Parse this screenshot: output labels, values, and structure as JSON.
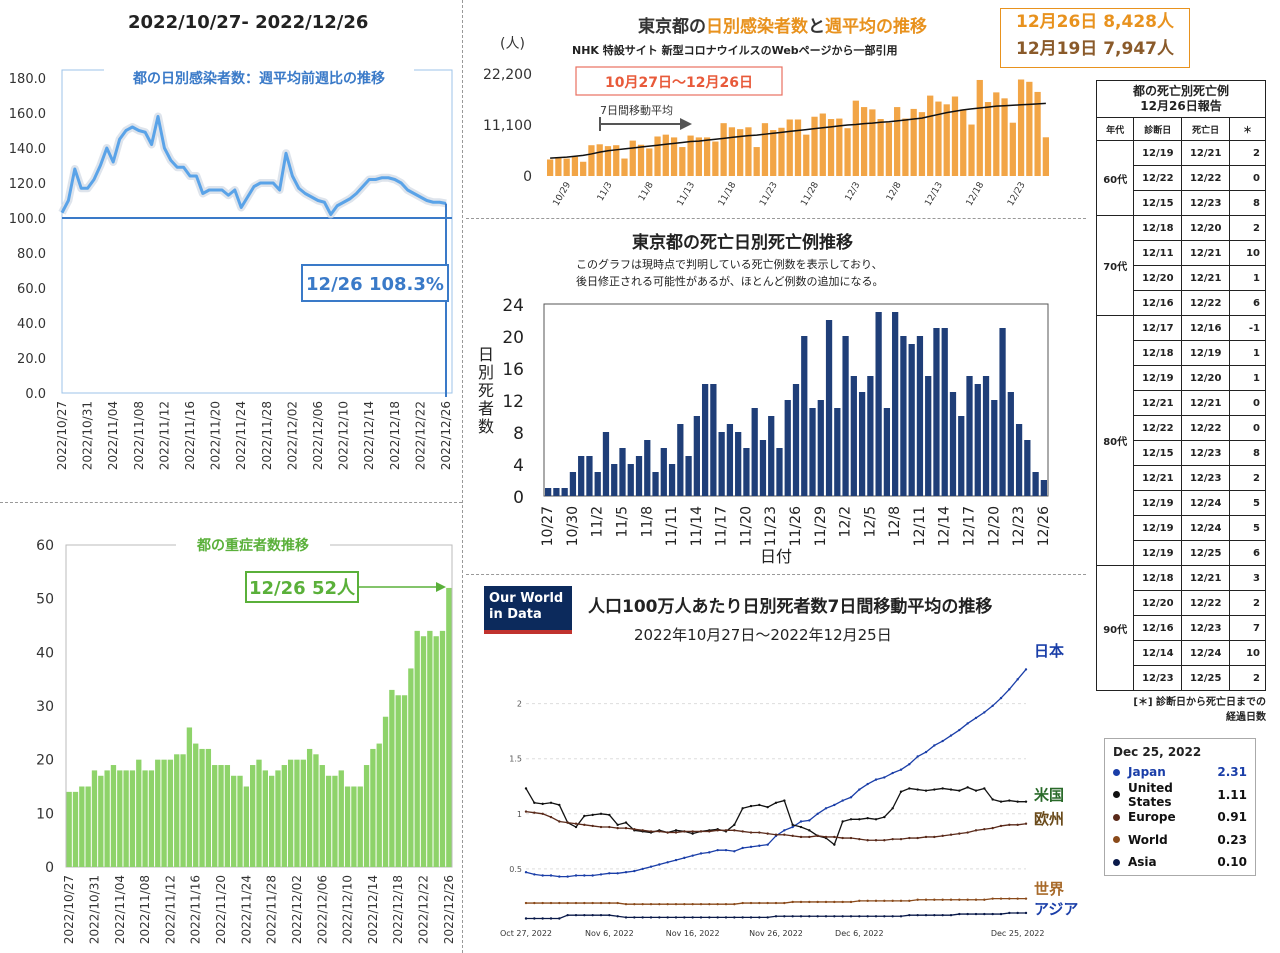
{
  "panel1": {
    "header": "2022/10/27- 2022/12/26",
    "title": "都の日別感染者数：週平均前週比の推移",
    "callout": "12/26 108.3%",
    "y_ticks": [
      "180.0",
      "160.0",
      "140.0",
      "120.0",
      "100.0",
      "80.0",
      "60.0",
      "40.0",
      "20.0",
      "0.0"
    ],
    "x_ticks": [
      "2022/10/27",
      "2022/10/31",
      "2022/11/04",
      "2022/11/08",
      "2022/11/12",
      "2022/11/16",
      "2022/11/20",
      "2022/11/24",
      "2022/11/28",
      "2022/12/02",
      "2022/12/06",
      "2022/12/10",
      "2022/12/14",
      "2022/12/18",
      "2022/12/22",
      "2022/12/26"
    ]
  },
  "panel2": {
    "title_part1": "東京都の",
    "title_part2": "日別感染者数",
    "title_part3": "と",
    "title_part4": "週平均",
    "title_part5": "の推移",
    "subtitle": "NHK 特設サイト 新型コロナウイルスのWebページから一部引用",
    "unit": "(人)",
    "range_label": "10月27日〜12月26日",
    "avg_label": "7日間移動平均",
    "box_line1": "12月26日 8,428人",
    "box_line2": "12月19日 7,947人",
    "y_ticks": [
      "22,200",
      "11,100",
      "0"
    ],
    "x_ticks": [
      "10/29",
      "11/3",
      "11/8",
      "11/13",
      "11/18",
      "11/23",
      "11/28",
      "12/3",
      "12/8",
      "12/13",
      "12/18",
      "12/23"
    ]
  },
  "panel3": {
    "title": "東京都の死亡日別死亡例推移",
    "note1": "このグラフは現時点で判明している死亡例数を表示しており、",
    "note2": "後日修正される可能性があるが、ほとんど例数の追加になる。",
    "ylabel": "日別死者数",
    "xlabel": "日付",
    "y_ticks": [
      "24",
      "20",
      "16",
      "12",
      "8",
      "4",
      "0"
    ],
    "x_ticks": [
      "10/27",
      "10/30",
      "11/2",
      "11/5",
      "11/8",
      "11/11",
      "11/14",
      "11/17",
      "11/20",
      "11/23",
      "11/26",
      "11/29",
      "12/2",
      "12/5",
      "12/8",
      "12/11",
      "12/14",
      "12/17",
      "12/20",
      "12/23",
      "12/26"
    ]
  },
  "panel4": {
    "title": "都の重症者数推移",
    "callout": "12/26 52人",
    "y_ticks": [
      "60",
      "50",
      "40",
      "30",
      "20",
      "10",
      "0"
    ],
    "x_ticks": [
      "2022/10/27",
      "2022/10/31",
      "2022/11/04",
      "2022/11/08",
      "2022/11/12",
      "2022/11/16",
      "2022/11/20",
      "2022/11/24",
      "2022/11/28",
      "2022/12/02",
      "2022/12/06",
      "2022/12/10",
      "2022/12/14",
      "2022/12/18",
      "2022/12/22",
      "2022/12/26"
    ]
  },
  "panel5": {
    "logo_line1": "Our World",
    "logo_line2": "in Data",
    "title": "人口100万人あたり日別死者数7日間移動平均の推移",
    "subtitle": "2022年10月27日〜2022年12月25日",
    "y_ticks": [
      "2",
      "1.5",
      "1",
      "0.5"
    ],
    "x_ticks": [
      "Oct 27, 2022",
      "Nov 6, 2022",
      "Nov 16, 2022",
      "Nov 26, 2022",
      "Dec 6, 2022",
      "Dec 25, 2022"
    ],
    "label_japan": "日本",
    "label_us": "米国",
    "label_europe": "欧州",
    "label_world": "世界",
    "label_asia": "アジア",
    "legend": {
      "date": "Dec 25, 2022",
      "rows": [
        {
          "name": "Japan",
          "value": "2.31",
          "color": "#1a3ea8"
        },
        {
          "name": "United States",
          "value": "1.11",
          "color": "#111111"
        },
        {
          "name": "Europe",
          "value": "0.91",
          "color": "#5a2a1a"
        },
        {
          "name": "World",
          "value": "0.23",
          "color": "#8a4a1a"
        },
        {
          "name": "Asia",
          "value": "0.10",
          "color": "#0a1a4a"
        }
      ]
    }
  },
  "table": {
    "title_line1": "都の死亡別死亡例",
    "title_line2": "12月26日報告",
    "headers": [
      "年代",
      "診断日",
      "死亡日",
      "＊"
    ],
    "groups": [
      {
        "age": "60代",
        "rows": [
          [
            "12/19",
            "12/21",
            "2"
          ],
          [
            "12/22",
            "12/22",
            "0"
          ],
          [
            "12/15",
            "12/23",
            "8"
          ]
        ]
      },
      {
        "age": "70代",
        "rows": [
          [
            "12/18",
            "12/20",
            "2"
          ],
          [
            "12/11",
            "12/21",
            "10"
          ],
          [
            "12/20",
            "12/21",
            "1"
          ],
          [
            "12/16",
            "12/22",
            "6"
          ]
        ]
      },
      {
        "age": "80代",
        "rows": [
          [
            "12/17",
            "12/16",
            "-1"
          ],
          [
            "12/18",
            "12/19",
            "1"
          ],
          [
            "12/19",
            "12/20",
            "1"
          ],
          [
            "12/21",
            "12/21",
            "0"
          ],
          [
            "12/22",
            "12/22",
            "0"
          ],
          [
            "12/15",
            "12/23",
            "8"
          ],
          [
            "12/21",
            "12/23",
            "2"
          ],
          [
            "12/19",
            "12/24",
            "5"
          ],
          [
            "12/19",
            "12/24",
            "5"
          ],
          [
            "12/19",
            "12/25",
            "6"
          ]
        ]
      },
      {
        "age": "90代",
        "rows": [
          [
            "12/18",
            "12/21",
            "3"
          ],
          [
            "12/20",
            "12/22",
            "2"
          ],
          [
            "12/16",
            "12/23",
            "7"
          ],
          [
            "12/14",
            "12/24",
            "10"
          ],
          [
            "12/23",
            "12/25",
            "2"
          ]
        ]
      }
    ],
    "footnote_line1": "[＊] 診断日から死亡日までの",
    "footnote_line2": "経過日数"
  },
  "chart_data": [
    {
      "type": "line",
      "title": "都の日別感染者数：週平均前週比の推移",
      "x_start": "2022/10/27",
      "x_end": "2022/12/26",
      "ylim": [
        0,
        180
      ],
      "reference_line": 100,
      "values": [
        103,
        110,
        128,
        117,
        117,
        122,
        130,
        140,
        132,
        145,
        150,
        152,
        150,
        149,
        142,
        158,
        140,
        133,
        129,
        129,
        124,
        124,
        114,
        116,
        116,
        116,
        113,
        116,
        106,
        112,
        118,
        120,
        120,
        120,
        116,
        137,
        124,
        117,
        114,
        112,
        110,
        109,
        102,
        107,
        109,
        111,
        114,
        118,
        122,
        122,
        123,
        123,
        122,
        120,
        116,
        114,
        112,
        110,
        109,
        109,
        108.3
      ]
    },
    {
      "type": "bar",
      "title": "東京都の日別感染者数と週平均の推移",
      "x_start": "10/27",
      "x_end": "12/26",
      "ylim": [
        0,
        22200
      ],
      "values": [
        3600,
        4100,
        3800,
        4200,
        3100,
        6700,
        6900,
        6500,
        6700,
        3800,
        7700,
        6800,
        6000,
        8600,
        9000,
        8400,
        6300,
        8800,
        8400,
        8400,
        7500,
        11500,
        10600,
        10200,
        10600,
        6300,
        11500,
        10000,
        10500,
        12300,
        12300,
        9000,
        12900,
        13600,
        12400,
        12500,
        10400,
        16400,
        15000,
        14500,
        12400,
        11600,
        15000,
        12500,
        14600,
        13900,
        17500,
        16200,
        15600,
        17300,
        14500,
        11200,
        20900,
        16100,
        18200,
        16900,
        11600,
        21000,
        20500,
        18300,
        8428
      ],
      "moving_average": [
        3900,
        4000,
        4100,
        4300,
        4500,
        4800,
        5200,
        5500,
        5700,
        5900,
        6100,
        6300,
        6500,
        6700,
        6900,
        7100,
        7300,
        7500,
        7600,
        7800,
        8000,
        8200,
        8400,
        8600,
        8800,
        8900,
        9100,
        9300,
        9500,
        9700,
        9900,
        10100,
        10300,
        10500,
        10700,
        10900,
        11100,
        11200,
        11400,
        11500,
        11700,
        11800,
        12000,
        12200,
        12400,
        12600,
        13000,
        13400,
        13800,
        14100,
        14400,
        14600,
        14800,
        15000,
        15200,
        15300,
        15400,
        15500,
        15600,
        15700,
        15800
      ]
    },
    {
      "type": "bar",
      "title": "東京都の死亡日別死亡例推移",
      "ylabel": "日別死者数",
      "xlabel": "日付",
      "x_start": "10/27",
      "x_end": "12/26",
      "ylim": [
        0,
        24
      ],
      "values": [
        1,
        1,
        1,
        3,
        5,
        5,
        3,
        8,
        4,
        6,
        4,
        5,
        7,
        3,
        6,
        4,
        9,
        5,
        10,
        14,
        14,
        8,
        9,
        8,
        6,
        11,
        7,
        10,
        6,
        12,
        14,
        20,
        11,
        12,
        22,
        11,
        20,
        15,
        13,
        15,
        23,
        11,
        23,
        20,
        19,
        20,
        15,
        21,
        21,
        13,
        10,
        15,
        14,
        15,
        12,
        21,
        13,
        9,
        7,
        3,
        2
      ]
    },
    {
      "type": "bar",
      "title": "都の重症者数推移",
      "x_start": "2022/10/27",
      "x_end": "2022/12/26",
      "ylim": [
        0,
        60
      ],
      "values": [
        14,
        14,
        15,
        15,
        18,
        17,
        18,
        19,
        18,
        18,
        18,
        20,
        18,
        18,
        20,
        20,
        20,
        21,
        21,
        26,
        23,
        22,
        22,
        19,
        19,
        19,
        17,
        17,
        15,
        19,
        20,
        18,
        17,
        18,
        19,
        20,
        20,
        20,
        22,
        21,
        19,
        17,
        17,
        18,
        15,
        15,
        15,
        19,
        22,
        23,
        28,
        33,
        32,
        32,
        37,
        44,
        43,
        44,
        43,
        44,
        52
      ]
    },
    {
      "type": "line",
      "title": "人口100万人あたり日別死者数7日間移動平均の推移",
      "x_start": "Oct 27, 2022",
      "x_end": "Dec 25, 2022",
      "series": [
        {
          "name": "Japan",
          "color": "#1a3ea8",
          "values": [
            0.47,
            0.45,
            0.44,
            0.44,
            0.43,
            0.43,
            0.44,
            0.44,
            0.44,
            0.45,
            0.46,
            0.46,
            0.47,
            0.48,
            0.5,
            0.52,
            0.54,
            0.56,
            0.58,
            0.6,
            0.62,
            0.64,
            0.65,
            0.67,
            0.67,
            0.66,
            0.69,
            0.7,
            0.71,
            0.72,
            0.8,
            0.85,
            0.88,
            0.93,
            0.94,
            1.0,
            1.05,
            1.08,
            1.12,
            1.15,
            1.22,
            1.27,
            1.31,
            1.33,
            1.37,
            1.4,
            1.45,
            1.52,
            1.56,
            1.62,
            1.66,
            1.71,
            1.76,
            1.82,
            1.87,
            1.92,
            1.98,
            2.05,
            2.13,
            2.22,
            2.31
          ]
        },
        {
          "name": "United States",
          "color": "#111111",
          "values": [
            1.23,
            1.1,
            1.09,
            1.1,
            1.08,
            0.92,
            0.88,
            0.98,
            0.99,
            1.0,
            0.99,
            0.9,
            0.92,
            0.85,
            0.84,
            0.83,
            0.85,
            0.83,
            0.85,
            0.84,
            0.82,
            0.84,
            0.85,
            0.86,
            0.84,
            0.9,
            1.05,
            1.07,
            1.08,
            1.06,
            1.1,
            1.12,
            0.9,
            0.88,
            0.85,
            0.8,
            0.78,
            0.72,
            0.93,
            0.95,
            0.95,
            0.96,
            0.95,
            0.97,
            1.05,
            1.2,
            1.23,
            1.22,
            1.21,
            1.22,
            1.23,
            1.22,
            1.21,
            1.24,
            1.21,
            1.23,
            1.13,
            1.11,
            1.12,
            1.11,
            1.11
          ]
        },
        {
          "name": "Europe",
          "color": "#5a2a1a",
          "values": [
            1.02,
            1.01,
            1.0,
            0.97,
            0.93,
            0.92,
            0.91,
            0.9,
            0.89,
            0.88,
            0.88,
            0.87,
            0.87,
            0.86,
            0.85,
            0.84,
            0.84,
            0.83,
            0.83,
            0.84,
            0.84,
            0.84,
            0.84,
            0.85,
            0.85,
            0.85,
            0.84,
            0.83,
            0.83,
            0.82,
            0.81,
            0.81,
            0.8,
            0.79,
            0.79,
            0.8,
            0.79,
            0.79,
            0.78,
            0.78,
            0.77,
            0.76,
            0.76,
            0.76,
            0.77,
            0.77,
            0.78,
            0.78,
            0.79,
            0.79,
            0.8,
            0.81,
            0.82,
            0.83,
            0.85,
            0.86,
            0.87,
            0.89,
            0.9,
            0.9,
            0.91
          ]
        },
        {
          "name": "World",
          "color": "#8a4a1a",
          "values": [
            0.19,
            0.19,
            0.19,
            0.19,
            0.19,
            0.19,
            0.19,
            0.19,
            0.19,
            0.19,
            0.19,
            0.19,
            0.18,
            0.18,
            0.18,
            0.18,
            0.18,
            0.18,
            0.18,
            0.18,
            0.18,
            0.18,
            0.18,
            0.18,
            0.18,
            0.18,
            0.19,
            0.19,
            0.19,
            0.19,
            0.19,
            0.19,
            0.2,
            0.2,
            0.2,
            0.2,
            0.2,
            0.2,
            0.2,
            0.2,
            0.21,
            0.21,
            0.21,
            0.21,
            0.21,
            0.21,
            0.21,
            0.22,
            0.22,
            0.22,
            0.22,
            0.22,
            0.22,
            0.22,
            0.22,
            0.22,
            0.23,
            0.23,
            0.23,
            0.23,
            0.23
          ]
        },
        {
          "name": "Asia",
          "color": "#0a1a4a",
          "values": [
            0.05,
            0.05,
            0.05,
            0.05,
            0.05,
            0.08,
            0.08,
            0.08,
            0.08,
            0.08,
            0.08,
            0.07,
            0.06,
            0.06,
            0.06,
            0.06,
            0.06,
            0.06,
            0.06,
            0.06,
            0.06,
            0.06,
            0.06,
            0.06,
            0.06,
            0.06,
            0.06,
            0.06,
            0.06,
            0.06,
            0.07,
            0.07,
            0.07,
            0.07,
            0.07,
            0.07,
            0.07,
            0.07,
            0.07,
            0.07,
            0.07,
            0.07,
            0.07,
            0.07,
            0.07,
            0.07,
            0.08,
            0.08,
            0.08,
            0.08,
            0.08,
            0.08,
            0.09,
            0.09,
            0.09,
            0.09,
            0.09,
            0.09,
            0.1,
            0.1,
            0.1
          ]
        }
      ]
    }
  ]
}
